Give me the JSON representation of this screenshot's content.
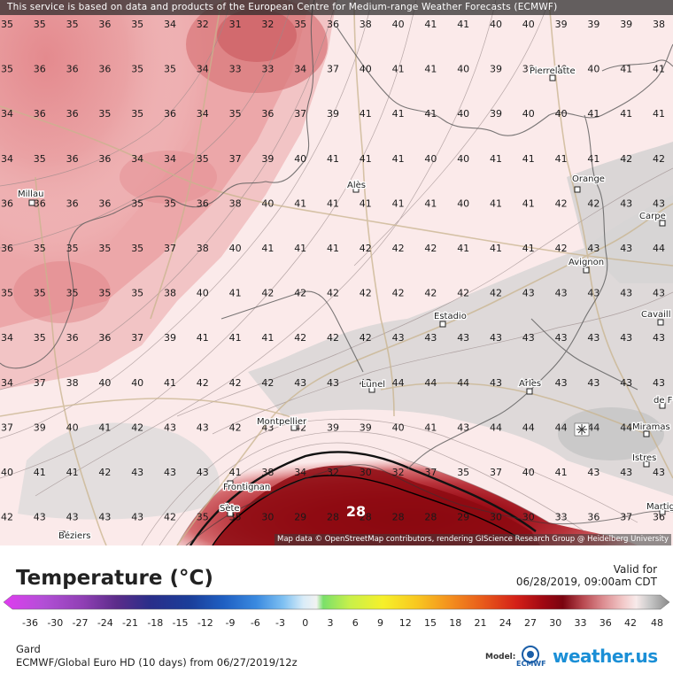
{
  "banner_text": "This service is based on data and products of the European Centre for Medium-range Weather Forecasts (ECMWF)",
  "attribution": "Map data © OpenStreetMap contributors, rendering GIScience Research Group @ Heidelberg University",
  "legend": {
    "title": "Temperature (°C)",
    "valid_label": "Valid for",
    "valid_time": "06/28/2019, 09:00am CDT",
    "colorbar_labels": [
      "-36",
      "-30",
      "-27",
      "-24",
      "-21",
      "-18",
      "-15",
      "-12",
      "-9",
      "-6",
      "-3",
      "0",
      "3",
      "6",
      "9",
      "12",
      "15",
      "18",
      "21",
      "24",
      "27",
      "30",
      "33",
      "36",
      "42",
      "48"
    ]
  },
  "footer": {
    "region": "Gard",
    "model": "ECMWF/Global Euro HD (10 days) from 06/27/2019/12z",
    "model_label": "Model:",
    "model_logo_text": "ECMWF",
    "brand": "weather.us"
  },
  "map": {
    "columns": 21,
    "rows": 12,
    "highlight_value": "28",
    "cities": [
      "Millau",
      "Alès",
      "Orange",
      "Pierrelatte",
      "Carpe",
      "Avignon",
      "Estadio",
      "Cavaill",
      "Lunel",
      "Arles",
      "de F",
      "Montpellier",
      "Miramas",
      "Istres",
      "Frontignan",
      "Sète",
      "Béziers",
      "Martig"
    ],
    "grid": [
      [
        "35",
        "35",
        "35",
        "36",
        "35",
        "34",
        "32",
        "31",
        "32",
        "35",
        "36",
        "38",
        "40",
        "41",
        "41",
        "40",
        "40",
        "39",
        "39",
        "39",
        "38"
      ],
      [
        "35",
        "36",
        "36",
        "36",
        "35",
        "35",
        "34",
        "33",
        "33",
        "34",
        "37",
        "40",
        "41",
        "41",
        "40",
        "39",
        "39",
        "40",
        "40",
        "41",
        "41"
      ],
      [
        "34",
        "36",
        "36",
        "35",
        "35",
        "36",
        "34",
        "35",
        "36",
        "37",
        "39",
        "41",
        "41",
        "41",
        "40",
        "39",
        "40",
        "40",
        "41",
        "41",
        "41"
      ],
      [
        "34",
        "35",
        "36",
        "36",
        "34",
        "34",
        "35",
        "37",
        "39",
        "40",
        "41",
        "41",
        "41",
        "40",
        "40",
        "41",
        "41",
        "41",
        "41",
        "42",
        "42"
      ],
      [
        "36",
        "36",
        "36",
        "36",
        "35",
        "35",
        "36",
        "38",
        "40",
        "41",
        "41",
        "41",
        "41",
        "41",
        "40",
        "41",
        "41",
        "42",
        "42",
        "43",
        "43"
      ],
      [
        "36",
        "35",
        "35",
        "35",
        "35",
        "37",
        "38",
        "40",
        "41",
        "41",
        "41",
        "42",
        "42",
        "42",
        "41",
        "41",
        "41",
        "42",
        "43",
        "43",
        "44"
      ],
      [
        "35",
        "35",
        "35",
        "35",
        "35",
        "38",
        "40",
        "41",
        "42",
        "42",
        "42",
        "42",
        "42",
        "42",
        "42",
        "42",
        "43",
        "43",
        "43",
        "43",
        "43"
      ],
      [
        "34",
        "35",
        "36",
        "36",
        "37",
        "39",
        "41",
        "41",
        "41",
        "42",
        "42",
        "42",
        "43",
        "43",
        "43",
        "43",
        "43",
        "43",
        "43",
        "43",
        "43"
      ],
      [
        "34",
        "37",
        "38",
        "40",
        "40",
        "41",
        "42",
        "42",
        "42",
        "43",
        "43",
        "43",
        "44",
        "44",
        "44",
        "43",
        "43",
        "43",
        "43",
        "43",
        "43"
      ],
      [
        "37",
        "39",
        "40",
        "41",
        "42",
        "43",
        "43",
        "42",
        "43",
        "42",
        "39",
        "39",
        "40",
        "41",
        "43",
        "44",
        "44",
        "44",
        "44",
        "44",
        "43"
      ],
      [
        "40",
        "41",
        "41",
        "42",
        "43",
        "43",
        "43",
        "41",
        "38",
        "34",
        "32",
        "30",
        "32",
        "37",
        "35",
        "37",
        "40",
        "41",
        "43",
        "43",
        "43"
      ],
      [
        "42",
        "43",
        "43",
        "43",
        "43",
        "42",
        "35",
        "35",
        "30",
        "29",
        "28",
        "28",
        "28",
        "28",
        "29",
        "30",
        "30",
        "33",
        "36",
        "37",
        "36"
      ]
    ]
  }
}
